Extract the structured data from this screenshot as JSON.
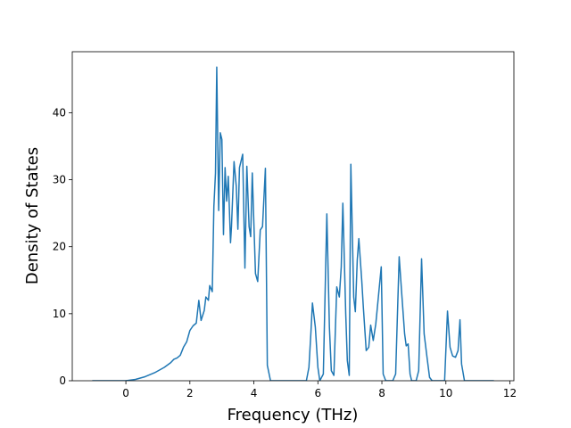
{
  "chart_data": {
    "type": "line",
    "xlabel": "Frequency (THz)",
    "ylabel": "Density of States",
    "xlim": [
      -1.675,
      12.125
    ],
    "ylim": [
      0,
      49.1
    ],
    "xticks": [
      0,
      2,
      4,
      6,
      8,
      10,
      12
    ],
    "yticks": [
      0,
      10,
      20,
      30,
      40
    ],
    "series": [
      {
        "color": "#1f77b4",
        "x": [
          -1.05,
          0,
          0.3,
          0.6,
          0.9,
          1.2,
          1.4,
          1.5,
          1.6,
          1.7,
          1.8,
          1.9,
          2.0,
          2.1,
          2.2,
          2.28,
          2.35,
          2.45,
          2.5,
          2.58,
          2.62,
          2.7,
          2.75,
          2.8,
          2.84,
          2.9,
          2.95,
          3.0,
          3.05,
          3.1,
          3.15,
          3.2,
          3.27,
          3.3,
          3.38,
          3.45,
          3.5,
          3.55,
          3.65,
          3.72,
          3.78,
          3.85,
          3.9,
          3.95,
          4.05,
          4.12,
          4.2,
          4.27,
          4.36,
          4.42,
          4.52,
          5.64,
          5.72,
          5.78,
          5.83,
          5.92,
          6.0,
          6.06,
          6.17,
          6.28,
          6.36,
          6.42,
          6.5,
          6.59,
          6.67,
          6.73,
          6.78,
          6.87,
          6.92,
          6.98,
          7.03,
          7.12,
          7.17,
          7.23,
          7.28,
          7.37,
          7.42,
          7.51,
          7.59,
          7.65,
          7.73,
          7.81,
          7.9,
          7.98,
          8.04,
          8.12,
          8.34,
          8.43,
          8.54,
          8.62,
          8.71,
          8.76,
          8.82,
          8.88,
          8.93,
          9.07,
          9.15,
          9.24,
          9.32,
          9.41,
          9.49,
          9.57,
          9.96,
          10.05,
          10.13,
          10.21,
          10.3,
          10.38,
          10.44,
          10.49,
          10.58,
          11.5
        ],
        "values": [
          0,
          0,
          0.2,
          0.6,
          1.2,
          2.0,
          2.7,
          3.2,
          3.4,
          3.8,
          5.0,
          5.8,
          7.5,
          8.2,
          8.6,
          12.0,
          9.0,
          10.5,
          12.5,
          12.0,
          14.2,
          13.3,
          26,
          31,
          46.8,
          25.4,
          37,
          36,
          21.8,
          31.8,
          26.8,
          30.5,
          20.6,
          23,
          32.7,
          29,
          22.6,
          31.8,
          33.8,
          16.8,
          32,
          23,
          21.5,
          31,
          16,
          14.8,
          22.5,
          23,
          31.7,
          2.3,
          0,
          0,
          2,
          7,
          11.6,
          8,
          2,
          0,
          1,
          24.9,
          8,
          1.5,
          0.8,
          14,
          12.5,
          17,
          26.5,
          10,
          3,
          0.8,
          32.3,
          12.5,
          10.3,
          18,
          21.2,
          15,
          11,
          4.5,
          5,
          8.3,
          6,
          8.5,
          13,
          17,
          1,
          0,
          0,
          1,
          18.5,
          13,
          7,
          5.2,
          5.5,
          1,
          0,
          0,
          1.5,
          18.2,
          7,
          3.5,
          0.5,
          0,
          0,
          10.4,
          5,
          3.7,
          3.5,
          4.5,
          9.1,
          2.5,
          0,
          0
        ]
      }
    ]
  }
}
